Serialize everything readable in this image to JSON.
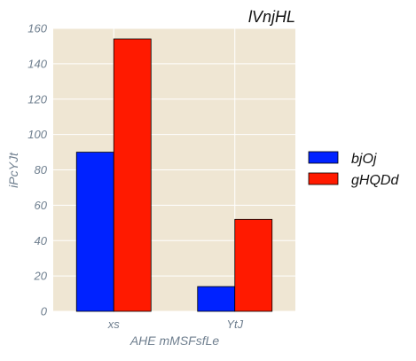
{
  "chart_data": {
    "type": "bar",
    "title": "lVnjHL",
    "xlabel": "AHE mMSFsfLe",
    "ylabel": "iPcYJt",
    "categories": [
      "xs",
      "YtJ"
    ],
    "series": [
      {
        "name": "bjOj",
        "values": [
          90,
          14
        ],
        "color": "#0022ff"
      },
      {
        "name": "gHQDd",
        "values": [
          154,
          52
        ],
        "color": "#ff1a00"
      }
    ],
    "ylim": [
      0,
      160
    ],
    "yticks": [
      0,
      20,
      40,
      60,
      80,
      100,
      120,
      140,
      160
    ],
    "grid": true,
    "legend": "right",
    "background": "#efe6d3",
    "grid_color": "#ffffff"
  }
}
